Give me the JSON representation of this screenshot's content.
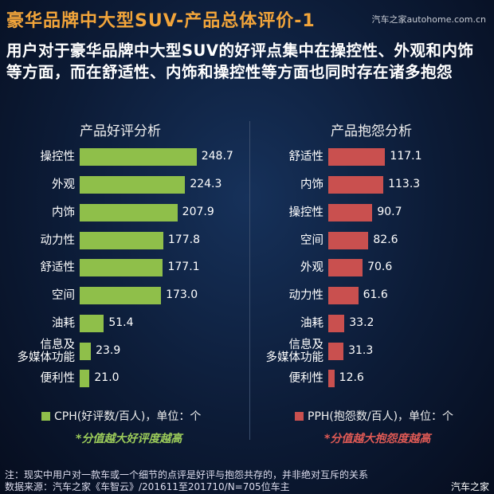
{
  "header": {
    "title": "豪华品牌中大型SUV-产品总体评价-1",
    "watermark": "汽车之家autohome.com.cn",
    "subtitle": "用户对于豪华品牌中大型SUV的好评点集中在操控性、外观和内饰等方面，而在舒适性、内饰和操控性等方面也同时存在诸多抱怨"
  },
  "chart_data": [
    {
      "type": "bar",
      "orientation": "horizontal",
      "title": "产品好评分析",
      "color": "#8fbf4a",
      "categories": [
        "操控性",
        "外观",
        "内饰",
        "动力性",
        "舒适性",
        "空间",
        "油耗",
        "信息及\n多媒体功能",
        "便利性"
      ],
      "values": [
        248.7,
        224.3,
        207.9,
        177.8,
        177.1,
        173.0,
        51.4,
        23.9,
        21.0
      ],
      "value_labels": [
        "248.7",
        "224.3",
        "207.9",
        "177.8",
        "177.1",
        "173.0",
        "51.4",
        "23.9",
        "21.0"
      ],
      "legend": "CPH(好评数/百人)，单位：个",
      "note": "*分值越大好评度越高"
    },
    {
      "type": "bar",
      "orientation": "horizontal",
      "title": "产品抱怨分析",
      "color": "#c9504f",
      "categories": [
        "舒适性",
        "内饰",
        "操控性",
        "空间",
        "外观",
        "动力性",
        "油耗",
        "信息及\n多媒体功能",
        "便利性"
      ],
      "values": [
        117.1,
        113.3,
        90.7,
        82.6,
        70.6,
        61.6,
        33.2,
        31.3,
        12.6
      ],
      "value_labels": [
        "117.1",
        "113.3",
        "90.7",
        "82.6",
        "70.6",
        "61.6",
        "33.2",
        "31.3",
        "12.6"
      ],
      "legend": "PPH(抱怨数/百人)，单位：个",
      "note": "*分值越大抱怨度越高"
    }
  ],
  "footer": {
    "note": "注：现实中用户对一款车或一个细节的点评是好评与抱怨共存的，并非绝对互斥的关系",
    "source": "数据来源：汽车之家《车智云》/201611至201710/N=705位车主",
    "logo": "汽车之家"
  }
}
